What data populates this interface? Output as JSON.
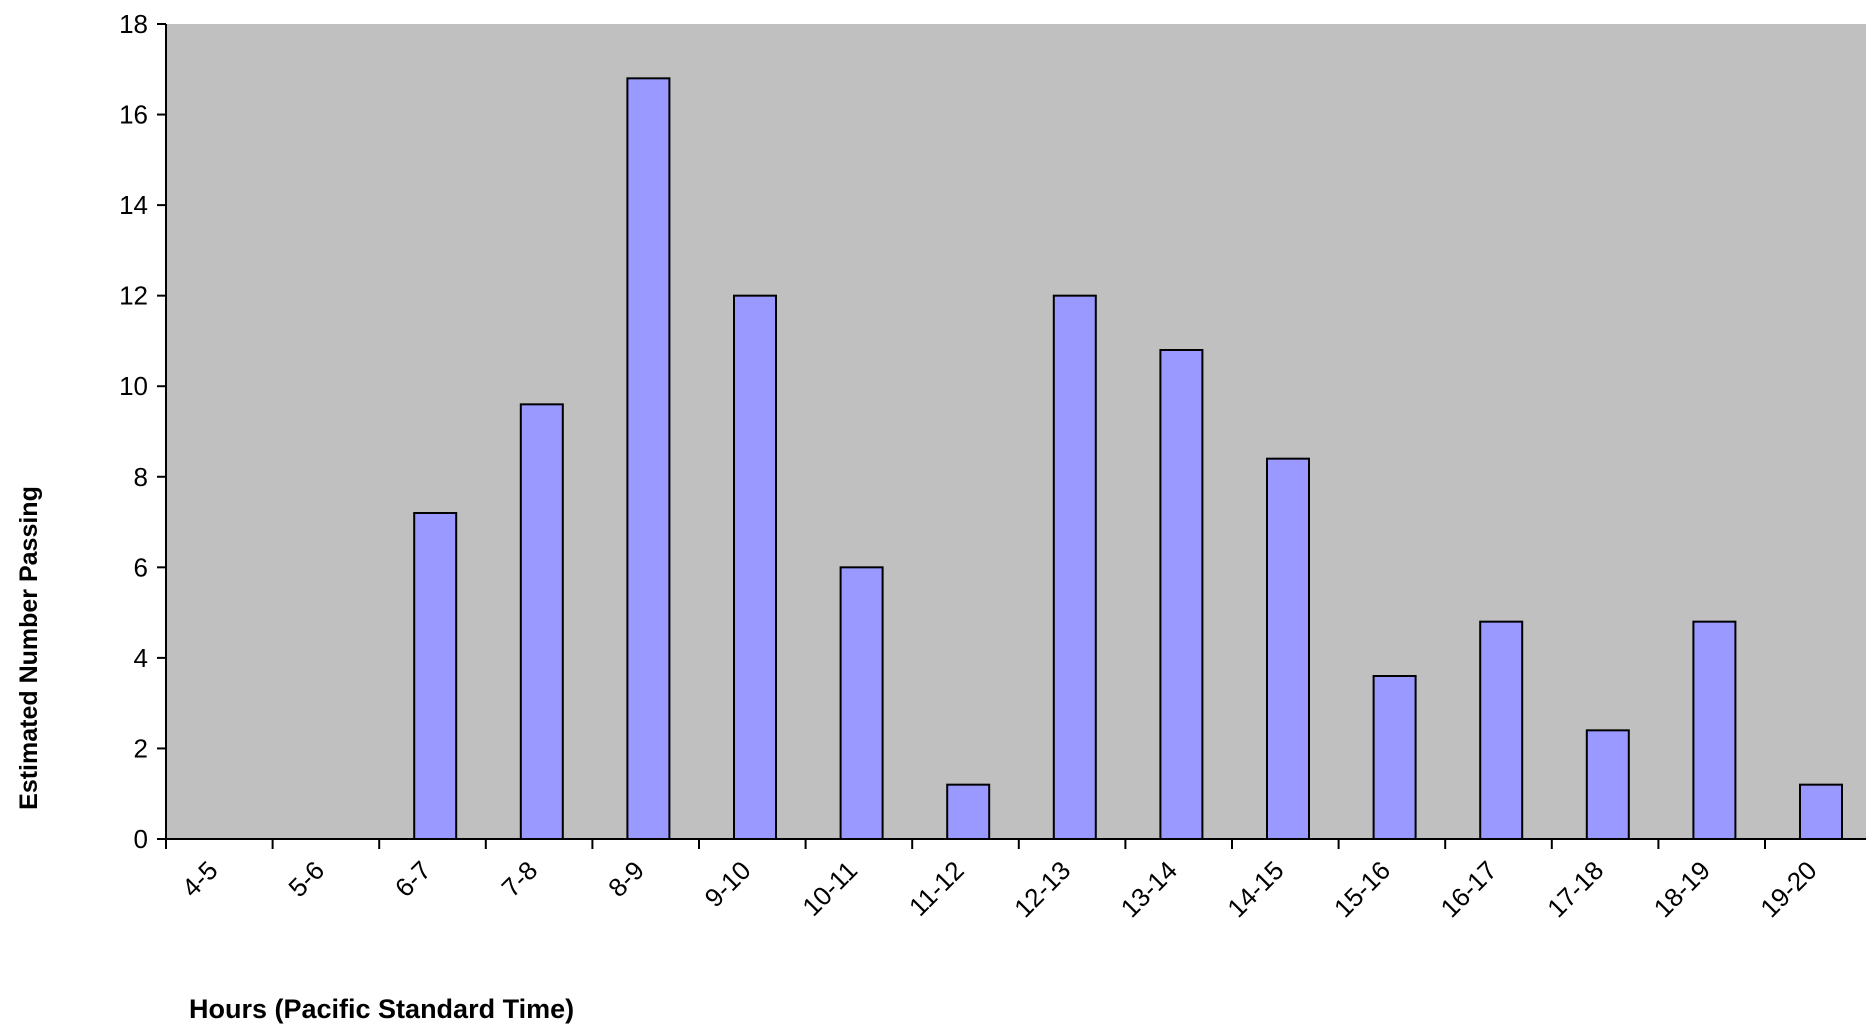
{
  "chart_data": {
    "type": "bar",
    "title": "",
    "xlabel": "Hours (Pacific Standard Time)",
    "ylabel": "Estimated Number Passing",
    "categories": [
      "4-5",
      "5-6",
      "6-7",
      "7-8",
      "8-9",
      "9-10",
      "10-11",
      "11-12",
      "12-13",
      "13-14",
      "14-15",
      "15-16",
      "16-17",
      "17-18",
      "18-19",
      "19-20"
    ],
    "values": [
      0,
      0,
      7.2,
      9.6,
      16.8,
      12,
      6,
      1.2,
      12,
      10.8,
      8.4,
      3.6,
      4.8,
      2.4,
      4.8,
      1.2
    ],
    "ylim": [
      0,
      18
    ],
    "yticks": [
      0,
      2,
      4,
      6,
      8,
      10,
      12,
      14,
      16,
      18
    ],
    "grid": false,
    "legend": "none",
    "colors": {
      "plot_background": "#c0c0c0",
      "bar_fill": "#9999ff",
      "bar_stroke": "#000000",
      "axis": "#000000"
    }
  }
}
